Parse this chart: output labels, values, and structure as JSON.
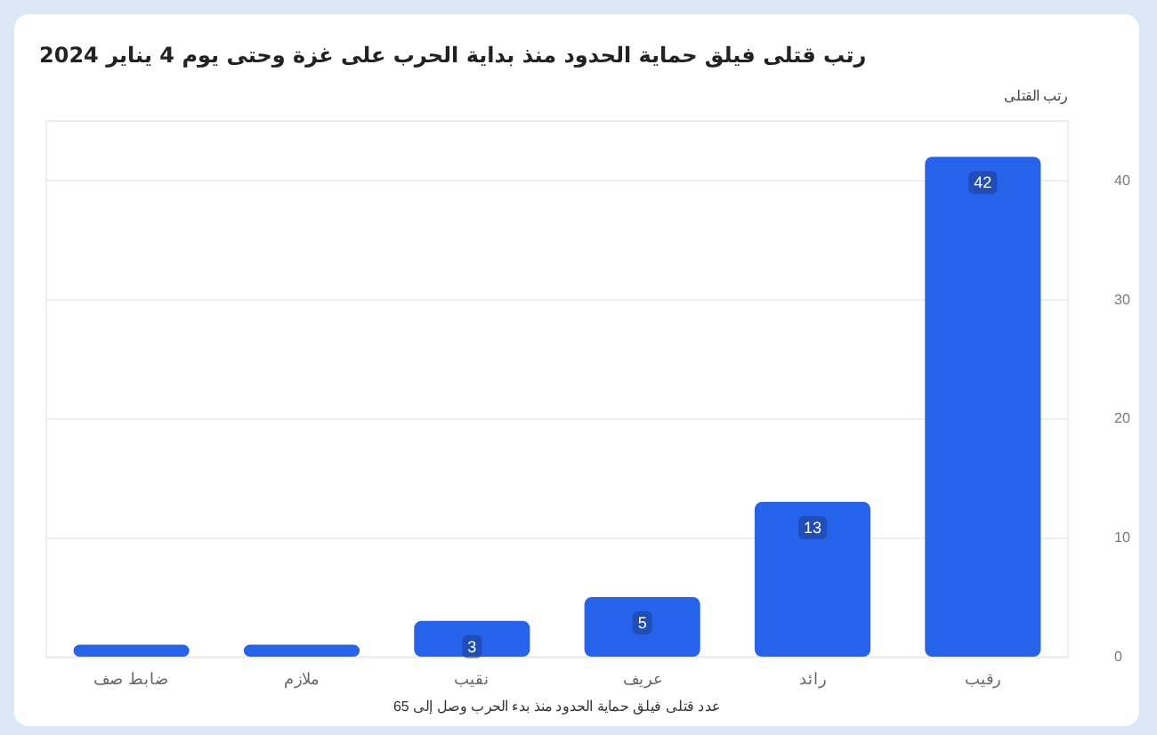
{
  "chart_data": {
    "type": "bar",
    "title": "رتب قتلى فيلق حماية الحدود منذ بداية الحرب على غزة وحتى يوم 4 يناير 2024",
    "xlabel": "عدد قتلى فيلق حماية الحدود منذ بدء الحرب وصل إلى 65",
    "ylabel": "رتب القتلى",
    "categories": [
      "ضابط صف",
      "ملازم",
      "نقيب",
      "عريف",
      "رائد",
      "رقيب"
    ],
    "series": [
      {
        "color": "#2563eb",
        "values": [
          1,
          1,
          3,
          5,
          13,
          42
        ],
        "value_labels": [
          null,
          null,
          "3",
          "5",
          "13",
          "42"
        ]
      }
    ],
    "ylim": [
      0,
      45
    ],
    "yticks": [
      0,
      10,
      20,
      30,
      40
    ],
    "grid": "y"
  }
}
